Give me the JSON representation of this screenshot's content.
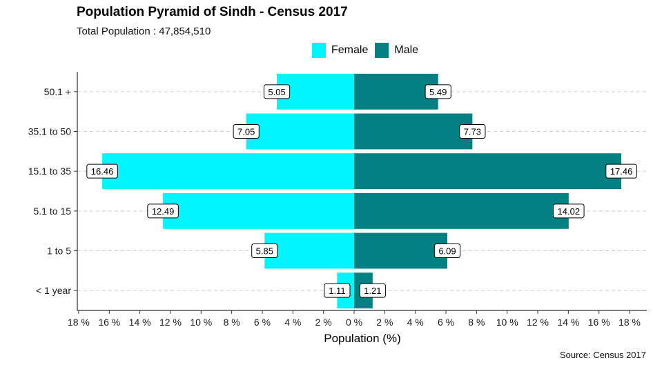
{
  "chart_data": {
    "type": "bar",
    "orientation": "horizontal",
    "layout": "population-pyramid",
    "title": "Population Pyramid of Sindh - Census 2017",
    "subtitle": "Total Population : 47,854,510",
    "caption": "Source: Census 2017",
    "xlabel": "Population (%)",
    "ylabel": "",
    "categories": [
      "< 1 year",
      "1 to 5",
      "5.1 to 15",
      "15.1 to 35",
      "35.1 to 50",
      "50.1 +"
    ],
    "series": [
      {
        "name": "Female",
        "color": "#00F5FF",
        "side": "left",
        "values": [
          1.11,
          5.85,
          12.49,
          16.46,
          7.05,
          5.05
        ]
      },
      {
        "name": "Male",
        "color": "#008080",
        "side": "right",
        "values": [
          1.21,
          6.09,
          14.02,
          17.46,
          7.73,
          5.49
        ]
      }
    ],
    "xlim": [
      -18,
      18
    ],
    "xticks": [
      -18,
      -16,
      -14,
      -12,
      -10,
      -8,
      -6,
      -4,
      -2,
      0,
      2,
      4,
      6,
      8,
      10,
      12,
      14,
      16,
      18
    ],
    "xtick_labels": [
      "18 %",
      "16 %",
      "14 %",
      "12 %",
      "10 %",
      "8 %",
      "6 %",
      "4 %",
      "2 %",
      "0 %",
      "2 %",
      "4 %",
      "6 %",
      "8 %",
      "10 %",
      "12 %",
      "14 %",
      "16 %",
      "18 %"
    ],
    "legend_position": "top",
    "grid": "horizontal dashed"
  }
}
